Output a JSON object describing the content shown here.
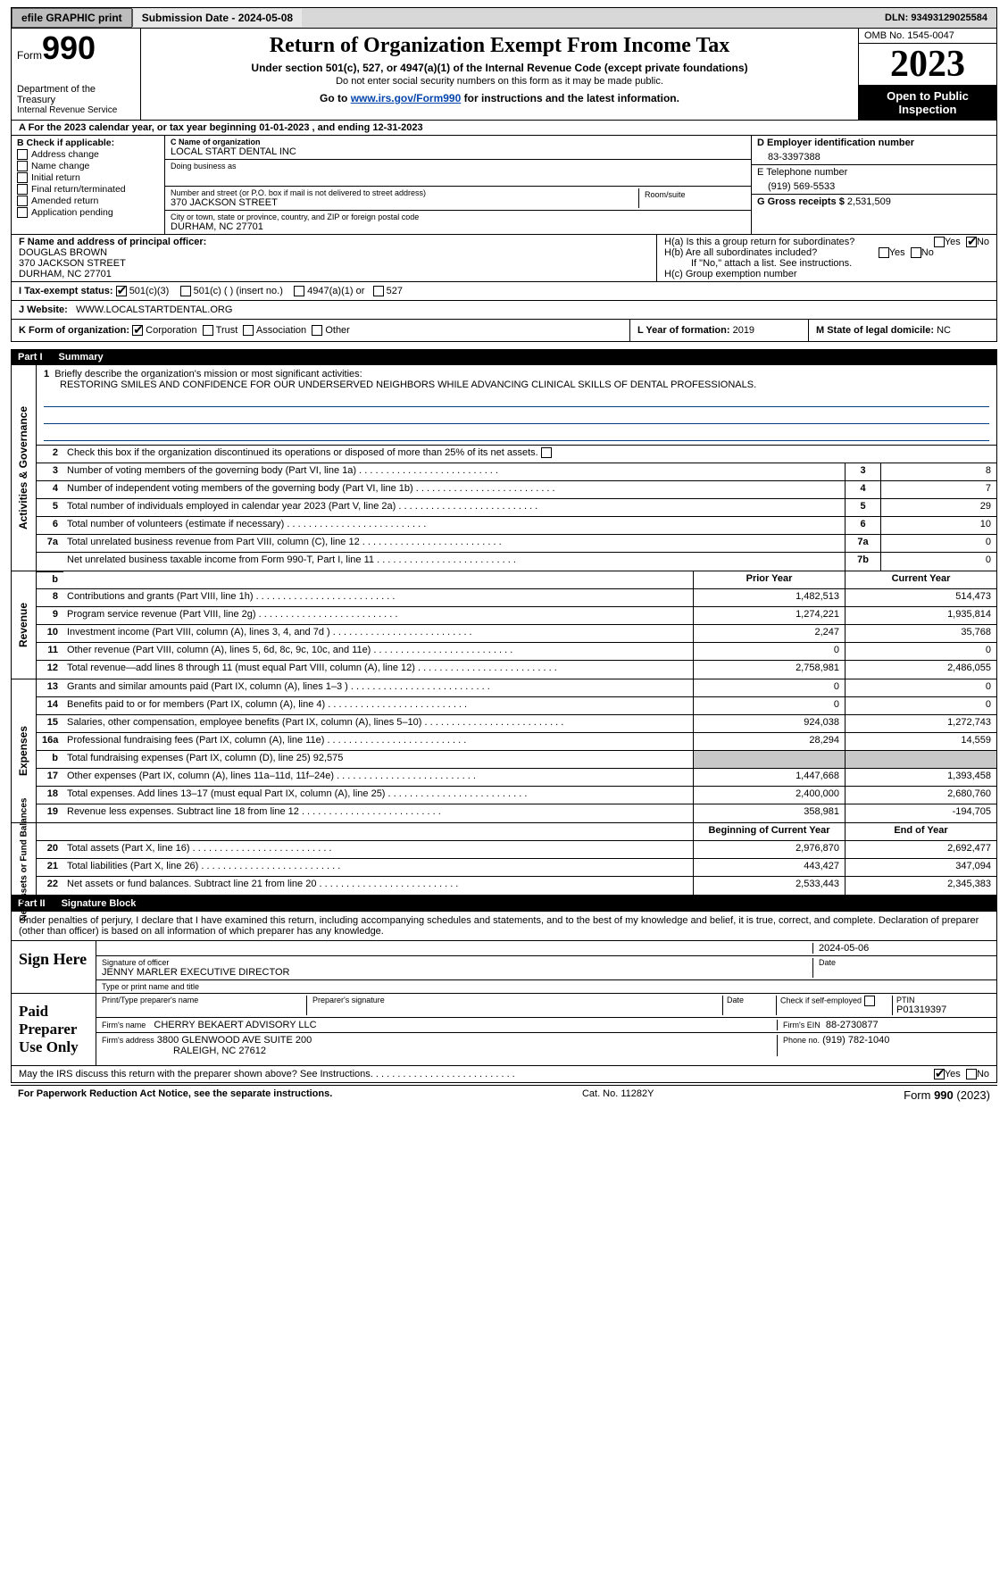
{
  "topbar": {
    "efile": "efile GRAPHIC print",
    "subdate_label": "Submission Date - 2024-05-08",
    "dln": "DLN: 93493129025584"
  },
  "header": {
    "form_word": "Form",
    "form_num": "990",
    "dept": "Department of the Treasury",
    "irs": "Internal Revenue Service",
    "title": "Return of Organization Exempt From Income Tax",
    "sub1": "Under section 501(c), 527, or 4947(a)(1) of the Internal Revenue Code (except private foundations)",
    "sub2": "Do not enter social security numbers on this form as it may be made public.",
    "sub3_pre": "Go to ",
    "sub3_link": "www.irs.gov/Form990",
    "sub3_post": " for instructions and the latest information.",
    "omb": "OMB No. 1545-0047",
    "year": "2023",
    "open": "Open to Public\nInspection"
  },
  "lineA": "A For the 2023 calendar year, or tax year beginning 01-01-2023    , and ending 12-31-2023",
  "boxB": {
    "label": "B Check if applicable:",
    "items": [
      "Address change",
      "Name change",
      "Initial return",
      "Final return/terminated",
      "Amended return",
      "Application pending"
    ]
  },
  "boxC": {
    "name_lbl": "C Name of organization",
    "name": "LOCAL START DENTAL INC",
    "dba_lbl": "Doing business as",
    "dba": "",
    "addr_lbl": "Number and street (or P.O. box if mail is not delivered to street address)",
    "room_lbl": "Room/suite",
    "addr": "370 JACKSON STREET",
    "city_lbl": "City or town, state or province, country, and ZIP or foreign postal code",
    "city": "DURHAM, NC  27701"
  },
  "boxD": {
    "label": "D Employer identification number",
    "value": "83-3397388"
  },
  "boxE": {
    "label": "E Telephone number",
    "value": "(919) 569-5533"
  },
  "boxG": {
    "label": "G Gross receipts $",
    "value": "2,531,509"
  },
  "boxF": {
    "label": "F Name and address of principal officer:",
    "name": "DOUGLAS BROWN",
    "addr1": "370 JACKSON STREET",
    "addr2": "DURHAM, NC  27701"
  },
  "boxH": {
    "a": "H(a)  Is this a group return for subordinates?",
    "a_yes": "Yes",
    "a_no": "No",
    "b": "H(b)  Are all subordinates included?",
    "b_yes": "Yes",
    "b_no": "No",
    "b_note": "If \"No,\" attach a list. See instructions.",
    "c": "H(c)  Group exemption number"
  },
  "lineI": {
    "label": "I    Tax-exempt status:",
    "opt1": "501(c)(3)",
    "opt2": "501(c) (  ) (insert no.)",
    "opt3": "4947(a)(1) or",
    "opt4": "527"
  },
  "lineJ": {
    "label": "J    Website:",
    "value": "WWW.LOCALSTARTDENTAL.ORG"
  },
  "lineK": {
    "label": "K Form of organization:",
    "c": "Corporation",
    "t": "Trust",
    "a": "Association",
    "o": "Other"
  },
  "lineL": {
    "label": "L Year of formation:",
    "value": "2019"
  },
  "lineM": {
    "label": "M State of legal domicile:",
    "value": "NC"
  },
  "part1": {
    "label": "Part I",
    "title": "Summary"
  },
  "summary": {
    "q1_label": "Briefly describe the organization's mission or most significant activities:",
    "q1_text": "RESTORING SMILES AND CONFIDENCE FOR OUR UNDERSERVED NEIGHBORS WHILE ADVANCING CLINICAL SKILLS OF DENTAL PROFESSIONALS.",
    "q2": "Check this box         if the organization discontinued its operations or disposed of more than 25% of its net assets.",
    "rows_ag": [
      {
        "n": "3",
        "t": "Number of voting members of the governing body (Part VI, line 1a)",
        "c": "3",
        "v": "8"
      },
      {
        "n": "4",
        "t": "Number of independent voting members of the governing body (Part VI, line 1b)",
        "c": "4",
        "v": "7"
      },
      {
        "n": "5",
        "t": "Total number of individuals employed in calendar year 2023 (Part V, line 2a)",
        "c": "5",
        "v": "29"
      },
      {
        "n": "6",
        "t": "Total number of volunteers (estimate if necessary)",
        "c": "6",
        "v": "10"
      },
      {
        "n": "7a",
        "t": "Total unrelated business revenue from Part VIII, column (C), line 12",
        "c": "7a",
        "v": "0"
      },
      {
        "n": "",
        "t": "Net unrelated business taxable income from Form 990-T, Part I, line 11",
        "c": "7b",
        "v": "0"
      }
    ],
    "col_prior": "Prior Year",
    "col_curr": "Current Year",
    "rows_rev": [
      {
        "n": "8",
        "t": "Contributions and grants (Part VIII, line 1h)",
        "p": "1,482,513",
        "c": "514,473"
      },
      {
        "n": "9",
        "t": "Program service revenue (Part VIII, line 2g)",
        "p": "1,274,221",
        "c": "1,935,814"
      },
      {
        "n": "10",
        "t": "Investment income (Part VIII, column (A), lines 3, 4, and 7d )",
        "p": "2,247",
        "c": "35,768"
      },
      {
        "n": "11",
        "t": "Other revenue (Part VIII, column (A), lines 5, 6d, 8c, 9c, 10c, and 11e)",
        "p": "0",
        "c": "0"
      },
      {
        "n": "12",
        "t": "Total revenue—add lines 8 through 11 (must equal Part VIII, column (A), line 12)",
        "p": "2,758,981",
        "c": "2,486,055"
      }
    ],
    "rows_exp": [
      {
        "n": "13",
        "t": "Grants and similar amounts paid (Part IX, column (A), lines 1–3 )",
        "p": "0",
        "c": "0"
      },
      {
        "n": "14",
        "t": "Benefits paid to or for members (Part IX, column (A), line 4)",
        "p": "0",
        "c": "0"
      },
      {
        "n": "15",
        "t": "Salaries, other compensation, employee benefits (Part IX, column (A), lines 5–10)",
        "p": "924,038",
        "c": "1,272,743"
      },
      {
        "n": "16a",
        "t": "Professional fundraising fees (Part IX, column (A), line 11e)",
        "p": "28,294",
        "c": "14,559"
      },
      {
        "n": "b",
        "t": "Total fundraising expenses (Part IX, column (D), line 25) 92,575",
        "p": "",
        "c": "",
        "shade": true
      },
      {
        "n": "17",
        "t": "Other expenses (Part IX, column (A), lines 11a–11d, 11f–24e)",
        "p": "1,447,668",
        "c": "1,393,458"
      },
      {
        "n": "18",
        "t": "Total expenses. Add lines 13–17 (must equal Part IX, column (A), line 25)",
        "p": "2,400,000",
        "c": "2,680,760"
      },
      {
        "n": "19",
        "t": "Revenue less expenses. Subtract line 18 from line 12",
        "p": "358,981",
        "c": "-194,705"
      }
    ],
    "col_beg": "Beginning of Current Year",
    "col_end": "End of Year",
    "rows_na": [
      {
        "n": "20",
        "t": "Total assets (Part X, line 16)",
        "p": "2,976,870",
        "c": "2,692,477"
      },
      {
        "n": "21",
        "t": "Total liabilities (Part X, line 26)",
        "p": "443,427",
        "c": "347,094"
      },
      {
        "n": "22",
        "t": "Net assets or fund balances. Subtract line 21 from line 20",
        "p": "2,533,443",
        "c": "2,345,383"
      }
    ],
    "vlabels": {
      "ag": "Activities & Governance",
      "rev": "Revenue",
      "exp": "Expenses",
      "na": "Net Assets or\nFund Balances"
    }
  },
  "part2": {
    "label": "Part II",
    "title": "Signature Block"
  },
  "sig": {
    "decl": "Under penalties of perjury, I declare that I have examined this return, including accompanying schedules and statements, and to the best of my knowledge and belief, it is true, correct, and complete. Declaration of preparer (other than officer) is based on all information of which preparer has any knowledge.",
    "sign_here": "Sign Here",
    "sig_officer_lbl": "Signature of officer",
    "sig_officer": "JENNY MARLER  EXECUTIVE DIRECTOR",
    "type_lbl": "Type or print name and title",
    "date_lbl": "Date",
    "date": "2024-05-06",
    "paid": "Paid Preparer Use Only",
    "prep_name_lbl": "Print/Type preparer's name",
    "prep_sig_lbl": "Preparer's signature",
    "check_lbl": "Check         if self-employed",
    "ptin_lbl": "PTIN",
    "ptin": "P01319397",
    "firm_name_lbl": "Firm's name",
    "firm_name": "CHERRY BEKAERT ADVISORY LLC",
    "firm_ein_lbl": "Firm's EIN",
    "firm_ein": "88-2730877",
    "firm_addr_lbl": "Firm's address",
    "firm_addr1": "3800 GLENWOOD AVE SUITE 200",
    "firm_addr2": "RALEIGH, NC  27612",
    "phone_lbl": "Phone no.",
    "phone": "(919) 782-1040",
    "discuss": "May the IRS discuss this return with the preparer shown above? See Instructions.",
    "yes": "Yes",
    "no": "No"
  },
  "foot": {
    "l": "For Paperwork Reduction Act Notice, see the separate instructions.",
    "c": "Cat. No. 11282Y",
    "r": "Form 990 (2023)"
  }
}
